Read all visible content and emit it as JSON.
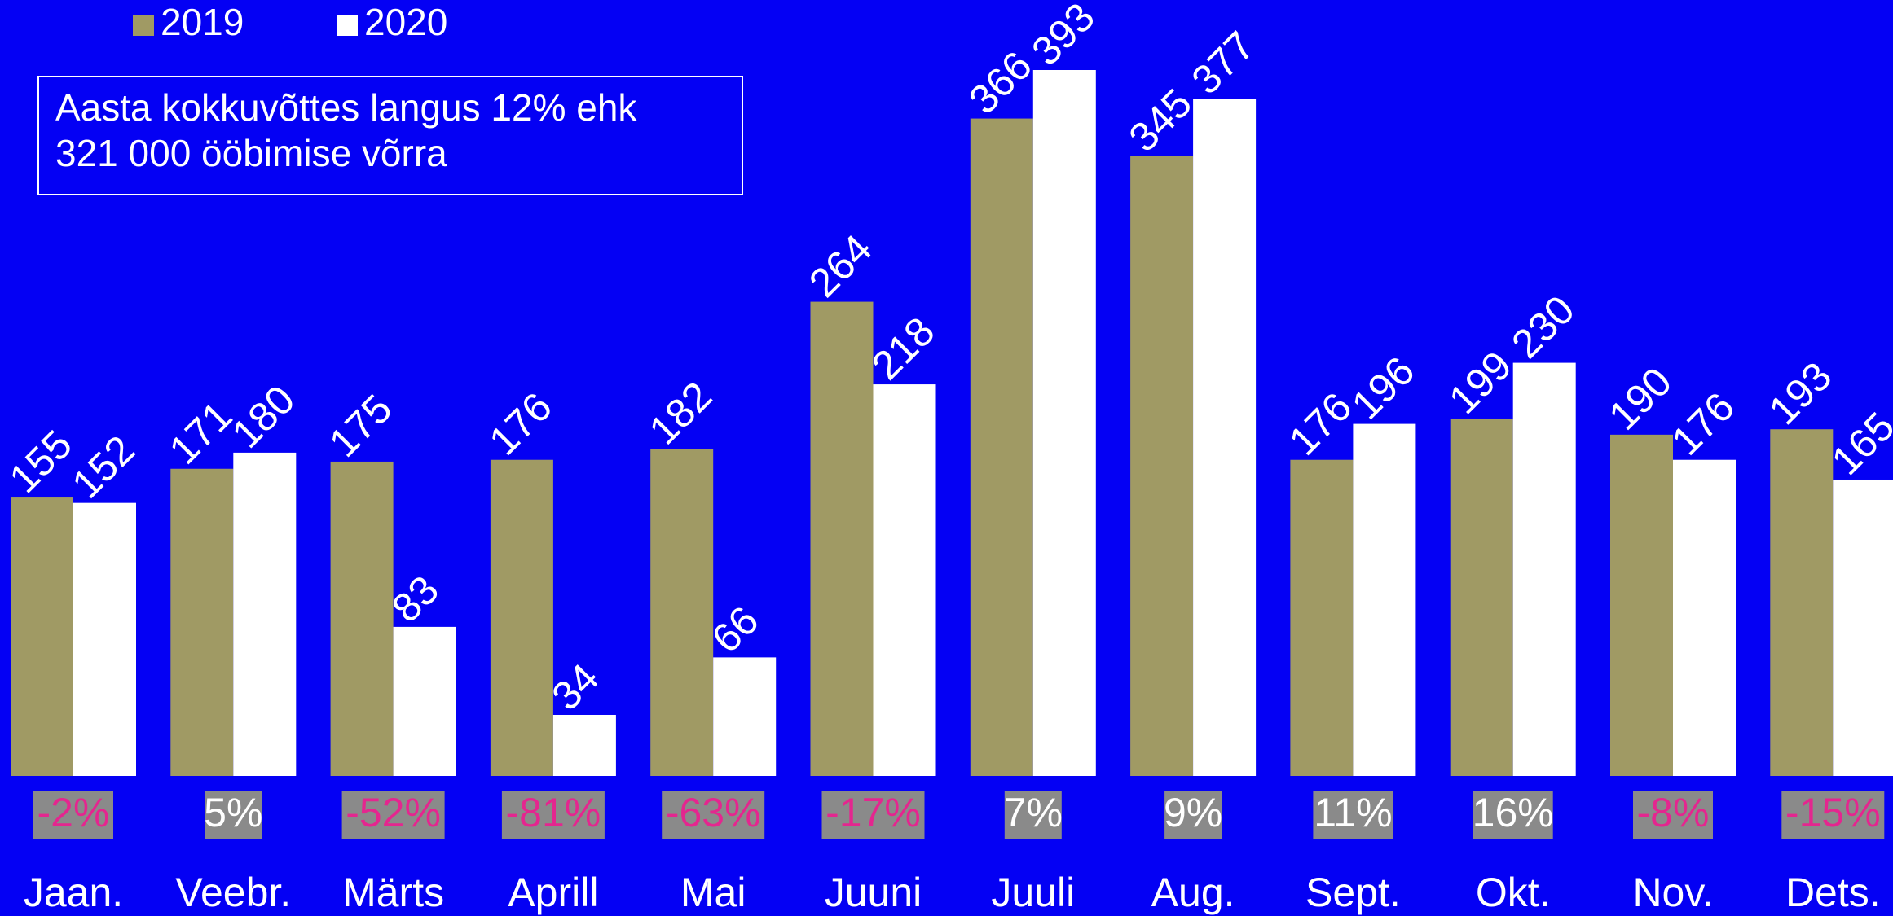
{
  "chart_data": {
    "type": "bar",
    "annotation": [
      "Aasta kokkuvõttes langus 12% ehk",
      "321 000 ööbimise võrra"
    ],
    "categories": [
      "Jaan.",
      "Veebr.",
      "Märts",
      "Aprill",
      "Mai",
      "Juuni",
      "Juuli",
      "Aug.",
      "Sept.",
      "Okt.",
      "Nov.",
      "Dets."
    ],
    "series": [
      {
        "name": "2019",
        "color": "#a09a64",
        "values": [
          155,
          171,
          175,
          176,
          182,
          264,
          366,
          345,
          176,
          199,
          190,
          193
        ]
      },
      {
        "name": "2020",
        "color": "#ffffff",
        "values": [
          152,
          180,
          83,
          34,
          66,
          218,
          393,
          377,
          196,
          230,
          176,
          165
        ]
      }
    ],
    "change_labels": [
      "-2%",
      "5%",
      "-52%",
      "-81%",
      "-63%",
      "-17%",
      "7%",
      "9%",
      "11%",
      "16%",
      "-8%",
      "-15%"
    ],
    "legend": "top-left"
  }
}
